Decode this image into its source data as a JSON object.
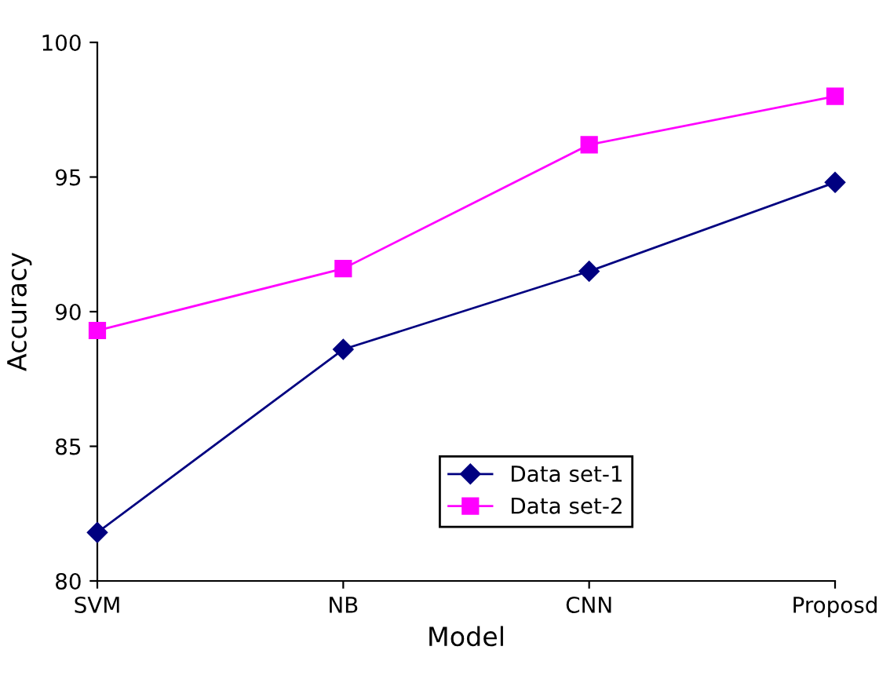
{
  "chart_data": {
    "type": "line",
    "xlabel": "Model",
    "ylabel": "Accuracy",
    "categories": [
      "SVM",
      "NB",
      "CNN",
      "Proposd"
    ],
    "series": [
      {
        "name": "Data set-1",
        "color": "#000080",
        "marker": "diamond",
        "values": [
          81.8,
          88.6,
          91.5,
          94.8
        ]
      },
      {
        "name": "Data set-2",
        "color": "#ff00ff",
        "marker": "square",
        "values": [
          89.3,
          91.6,
          96.2,
          98.0
        ]
      }
    ],
    "ylim": [
      80,
      100
    ],
    "yticks": [
      80,
      85,
      90,
      95,
      100
    ],
    "grid": false,
    "legend": "bottom right",
    "line_style": "solid"
  }
}
